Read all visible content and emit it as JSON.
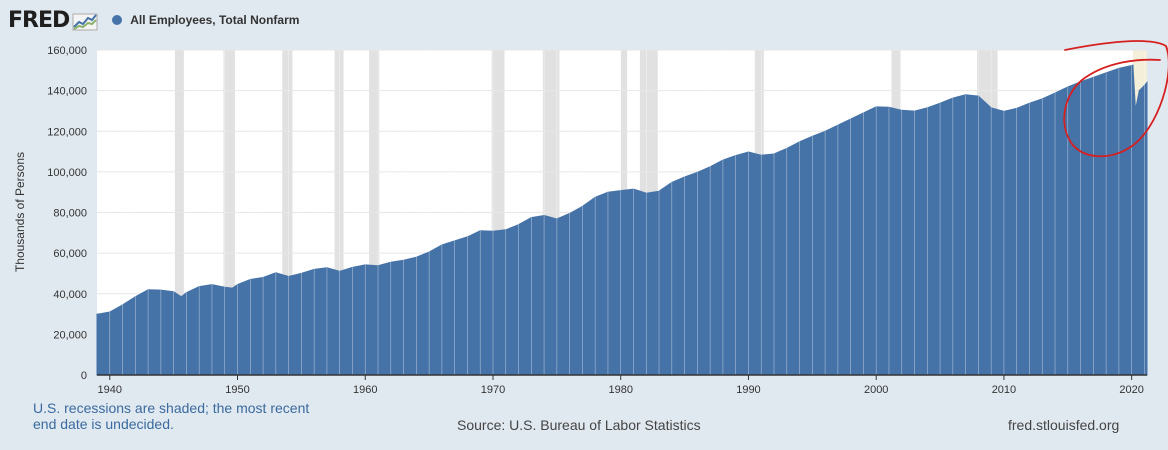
{
  "header": {
    "logo_text": "FRED",
    "legend_label": "All Employees, Total Nonfarm",
    "legend_color": "#4572a7"
  },
  "footer": {
    "note": "U.S. recessions are shaded; the most recent end date is undecided.",
    "source": "Source: U.S. Bureau of Labor Statistics",
    "site": "fred.stlouisfed.org"
  },
  "annotation_color": "#d62020",
  "chart_data": {
    "type": "area",
    "ylabel": "Thousands of Persons",
    "xlim": [
      1939,
      2021.2
    ],
    "ylim": [
      0,
      160000
    ],
    "x_ticks": [
      1940,
      1950,
      1960,
      1970,
      1980,
      1990,
      2000,
      2010,
      2020
    ],
    "y_ticks": [
      0,
      20000,
      40000,
      60000,
      80000,
      100000,
      120000,
      140000,
      160000
    ],
    "y_tick_labels": [
      "0",
      "20,000",
      "40,000",
      "60,000",
      "80,000",
      "100,000",
      "120,000",
      "140,000",
      "160,000"
    ],
    "grid": true,
    "series": [
      {
        "name": "All Employees, Total Nonfarm",
        "color": "#4572a7",
        "points": [
          [
            1939.0,
            29900
          ],
          [
            1940.0,
            31000
          ],
          [
            1941.0,
            34500
          ],
          [
            1942.0,
            38500
          ],
          [
            1943.0,
            42000
          ],
          [
            1944.0,
            41800
          ],
          [
            1945.0,
            41000
          ],
          [
            1945.6,
            38500
          ],
          [
            1946.0,
            40500
          ],
          [
            1947.0,
            43500
          ],
          [
            1948.0,
            44500
          ],
          [
            1949.0,
            43200
          ],
          [
            1949.6,
            42800
          ],
          [
            1950.0,
            44500
          ],
          [
            1951.0,
            47000
          ],
          [
            1952.0,
            48000
          ],
          [
            1953.0,
            50300
          ],
          [
            1954.0,
            48500
          ],
          [
            1955.0,
            50000
          ],
          [
            1956.0,
            52000
          ],
          [
            1957.0,
            52800
          ],
          [
            1958.0,
            51000
          ],
          [
            1959.0,
            53000
          ],
          [
            1960.0,
            54200
          ],
          [
            1961.0,
            53800
          ],
          [
            1962.0,
            55500
          ],
          [
            1963.0,
            56500
          ],
          [
            1964.0,
            58000
          ],
          [
            1965.0,
            60500
          ],
          [
            1966.0,
            64000
          ],
          [
            1967.0,
            66000
          ],
          [
            1968.0,
            68000
          ],
          [
            1969.0,
            71000
          ],
          [
            1970.0,
            70800
          ],
          [
            1971.0,
            71500
          ],
          [
            1972.0,
            74000
          ],
          [
            1973.0,
            77500
          ],
          [
            1974.0,
            78500
          ],
          [
            1975.0,
            76800
          ],
          [
            1976.0,
            79500
          ],
          [
            1977.0,
            83000
          ],
          [
            1978.0,
            87500
          ],
          [
            1979.0,
            90000
          ],
          [
            1980.0,
            90800
          ],
          [
            1981.0,
            91500
          ],
          [
            1982.0,
            89500
          ],
          [
            1983.0,
            90500
          ],
          [
            1984.0,
            94800
          ],
          [
            1985.0,
            97500
          ],
          [
            1986.0,
            99800
          ],
          [
            1987.0,
            102500
          ],
          [
            1988.0,
            105800
          ],
          [
            1989.0,
            108000
          ],
          [
            1990.0,
            109800
          ],
          [
            1991.0,
            108200
          ],
          [
            1992.0,
            108800
          ],
          [
            1993.0,
            111500
          ],
          [
            1994.0,
            114800
          ],
          [
            1995.0,
            117500
          ],
          [
            1996.0,
            120000
          ],
          [
            1997.0,
            123000
          ],
          [
            1998.0,
            126000
          ],
          [
            1999.0,
            129000
          ],
          [
            2000.0,
            132000
          ],
          [
            2001.0,
            131800
          ],
          [
            2002.0,
            130300
          ],
          [
            2003.0,
            129900
          ],
          [
            2004.0,
            131500
          ],
          [
            2005.0,
            133800
          ],
          [
            2006.0,
            136300
          ],
          [
            2007.0,
            138000
          ],
          [
            2008.0,
            137300
          ],
          [
            2009.0,
            131500
          ],
          [
            2010.0,
            129800
          ],
          [
            2011.0,
            131300
          ],
          [
            2012.0,
            133800
          ],
          [
            2013.0,
            136000
          ],
          [
            2014.0,
            138800
          ],
          [
            2015.0,
            141800
          ],
          [
            2016.0,
            144300
          ],
          [
            2017.0,
            146500
          ],
          [
            2018.0,
            148800
          ],
          [
            2019.0,
            151000
          ],
          [
            2020.1,
            152500
          ],
          [
            2020.3,
            130500
          ],
          [
            2020.6,
            140000
          ],
          [
            2021.0,
            142500
          ],
          [
            2021.2,
            144000
          ]
        ]
      }
    ],
    "recessions": [
      [
        1945.1,
        1945.8
      ],
      [
        1948.9,
        1949.8
      ],
      [
        1953.5,
        1954.3
      ],
      [
        1957.6,
        1958.3
      ],
      [
        1960.3,
        1961.1
      ],
      [
        1969.9,
        1970.9
      ],
      [
        1973.9,
        1975.2
      ],
      [
        1980.0,
        1980.5
      ],
      [
        1981.5,
        1982.9
      ],
      [
        1990.5,
        1991.2
      ],
      [
        2001.2,
        2001.9
      ],
      [
        2007.9,
        2009.5
      ],
      [
        2020.1,
        2021.2
      ]
    ]
  }
}
